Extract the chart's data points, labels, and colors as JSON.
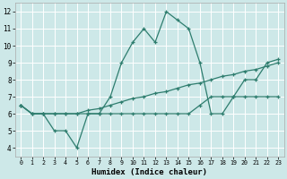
{
  "xlabel": "Humidex (Indice chaleur)",
  "background_color": "#cde8e8",
  "grid_color": "#ffffff",
  "line_color": "#2e7d6e",
  "xlim": [
    -0.5,
    23.5
  ],
  "ylim": [
    3.5,
    12.5
  ],
  "xticks": [
    0,
    1,
    2,
    3,
    4,
    5,
    6,
    7,
    8,
    9,
    10,
    11,
    12,
    13,
    14,
    15,
    16,
    17,
    18,
    19,
    20,
    21,
    22,
    23
  ],
  "yticks": [
    4,
    5,
    6,
    7,
    8,
    9,
    10,
    11,
    12
  ],
  "series": [
    [
      6.5,
      6.0,
      6.0,
      5.0,
      5.0,
      4.0,
      6.0,
      6.0,
      7.0,
      9.0,
      10.2,
      11.0,
      10.2,
      12.0,
      11.5,
      11.0,
      9.0,
      6.0,
      6.0,
      7.0,
      8.0,
      8.0,
      9.0,
      9.2
    ],
    [
      6.5,
      6.0,
      6.0,
      6.0,
      6.0,
      6.0,
      6.0,
      6.0,
      6.0,
      6.0,
      6.0,
      6.0,
      6.0,
      6.0,
      6.0,
      6.0,
      6.5,
      7.0,
      7.0,
      7.0,
      7.0,
      7.0,
      7.0,
      7.0
    ],
    [
      6.5,
      6.0,
      6.0,
      6.0,
      6.0,
      6.0,
      6.2,
      6.3,
      6.5,
      6.7,
      6.9,
      7.0,
      7.2,
      7.3,
      7.5,
      7.7,
      7.8,
      8.0,
      8.2,
      8.3,
      8.5,
      8.6,
      8.8,
      9.0
    ]
  ]
}
